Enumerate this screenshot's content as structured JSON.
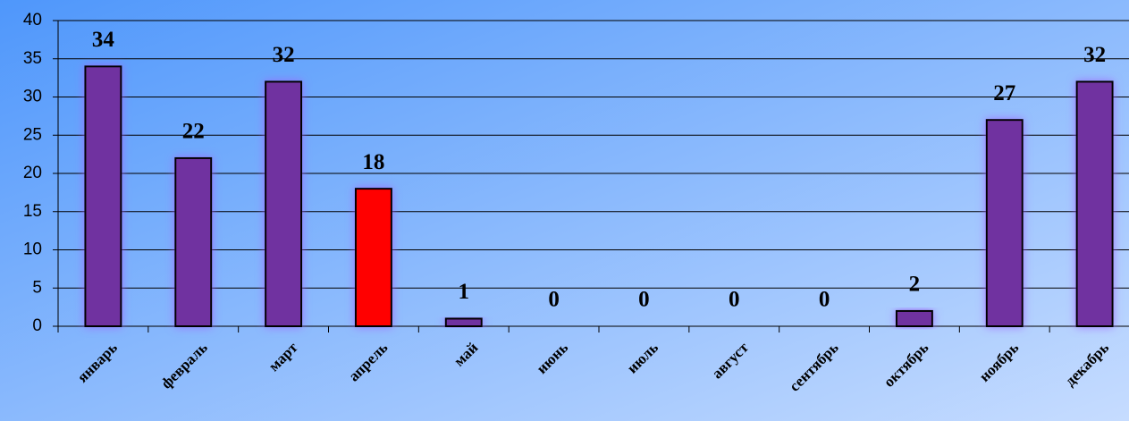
{
  "chart_data": {
    "type": "bar",
    "categories": [
      "январь",
      "февраль",
      "март",
      "апрель",
      "май",
      "июнь",
      "июль",
      "август",
      "сентябрь",
      "октябрь",
      "ноябрь",
      "декабрь"
    ],
    "values": [
      34,
      22,
      32,
      18,
      1,
      0,
      0,
      0,
      0,
      2,
      27,
      32
    ],
    "colors": [
      "#7030a0",
      "#7030a0",
      "#7030a0",
      "#ff0000",
      "#7030a0",
      "#7030a0",
      "#7030a0",
      "#7030a0",
      "#7030a0",
      "#7030a0",
      "#7030a0",
      "#7030a0"
    ],
    "ylim": [
      0,
      40
    ],
    "yticks": [
      0,
      5,
      10,
      15,
      20,
      25,
      30,
      35,
      40
    ],
    "grid": true
  }
}
